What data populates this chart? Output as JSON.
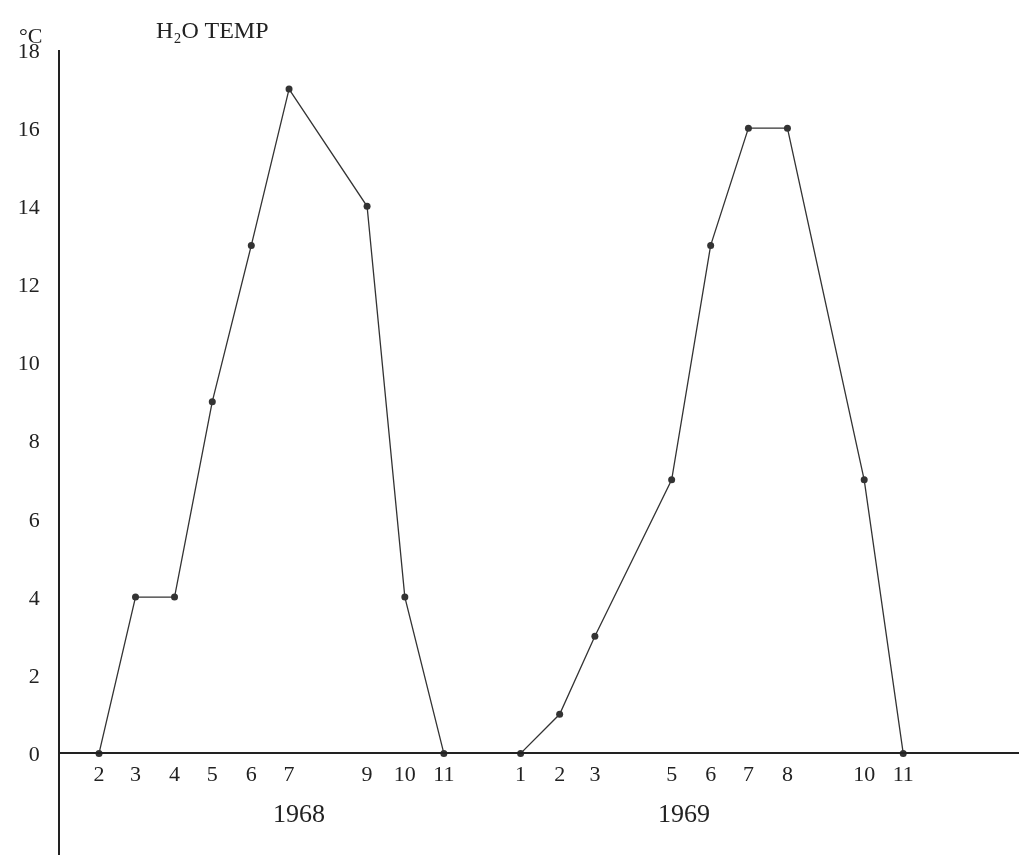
{
  "chart_data": {
    "type": "line",
    "title": "H₂O TEMP",
    "ylabel": "°C",
    "x": [
      "1968-02",
      "1968-03",
      "1968-04",
      "1968-05",
      "1968-06",
      "1968-07",
      "1968-09",
      "1968-10",
      "1968-11",
      "1969-01",
      "1969-02",
      "1969-03",
      "1969-05",
      "1969-06",
      "1969-07",
      "1969-08",
      "1969-10",
      "1969-11"
    ],
    "series": [
      {
        "color": "#333333",
        "values": [
          0,
          4,
          4,
          9,
          13,
          17,
          14,
          4,
          0,
          0,
          1,
          3,
          7,
          13,
          16,
          16,
          7,
          0
        ]
      }
    ],
    "xlim": [
      "1968-01",
      "1970-02"
    ],
    "xticks": [
      {
        "value": "1968-02",
        "label": "2"
      },
      {
        "value": "1968-03",
        "label": "3"
      },
      {
        "value": "1968-04",
        "label": "4"
      },
      {
        "value": "1968-05",
        "label": "5"
      },
      {
        "value": "1968-06",
        "label": "6"
      },
      {
        "value": "1968-07",
        "label": "7"
      },
      {
        "value": "1968-09",
        "label": "9"
      },
      {
        "value": "1968-10",
        "label": "10"
      },
      {
        "value": "1968-11",
        "label": "11"
      },
      {
        "value": "1969-01",
        "label": "1"
      },
      {
        "value": "1969-02",
        "label": "2"
      },
      {
        "value": "1969-03",
        "label": "3"
      },
      {
        "value": "1969-05",
        "label": "5"
      },
      {
        "value": "1969-06",
        "label": "6"
      },
      {
        "value": "1969-07",
        "label": "7"
      },
      {
        "value": "1969-08",
        "label": "8"
      },
      {
        "value": "1969-10",
        "label": "10"
      },
      {
        "value": "1969-11",
        "label": "11"
      }
    ],
    "ylim": [
      -2.6,
      18
    ],
    "yticks": [
      0,
      2,
      4,
      6,
      8,
      10,
      12,
      14,
      16,
      18
    ],
    "annotations": [
      "1968",
      "1969"
    ],
    "grid": false,
    "marker": "circle",
    "line_style": "solid"
  }
}
